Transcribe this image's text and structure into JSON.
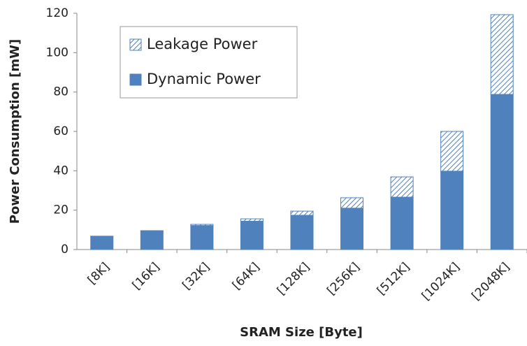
{
  "chart_data": {
    "type": "stacked_bar",
    "xlabel": "SRAM Size [Byte]",
    "ylabel": "Power Consumption [mW]",
    "categories": [
      "[8K]",
      "[16K]",
      "[32K]",
      "[64K]",
      "[128K]",
      "[256K]",
      "[512K]",
      "[1024K]",
      "[2048K]"
    ],
    "series": [
      {
        "name": "Dynamic Power",
        "color": "#4f81bd",
        "pattern": "solid",
        "values": [
          6.7,
          9.4,
          12.2,
          14.4,
          17.4,
          21,
          26.6,
          39.8,
          78.8
        ]
      },
      {
        "name": "Leakage Power",
        "color": "#4f81bd",
        "pattern": "hatch",
        "values": [
          0.1,
          0.2,
          0.6,
          1.2,
          2.1,
          5.3,
          10.3,
          20.2,
          40.5
        ]
      }
    ],
    "ylim": [
      0,
      120
    ],
    "yticks": [
      0,
      20,
      40,
      60,
      80,
      100,
      120
    ],
    "grid": false,
    "legend": "upper left"
  }
}
